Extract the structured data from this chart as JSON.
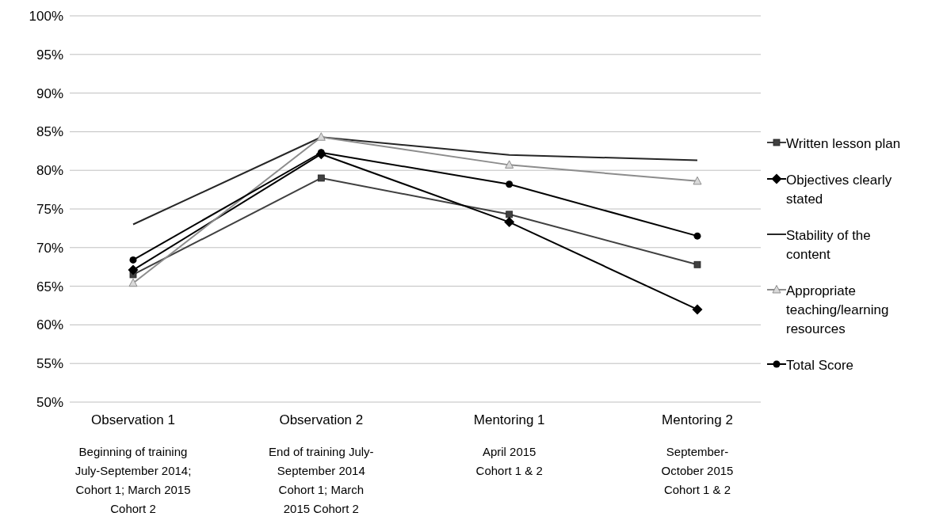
{
  "chart_data": {
    "type": "line",
    "categories": [
      "Observation 1\n\nBeginning of training\nJuly-September 2014;\nCohort 1; March 2015\nCohort 2",
      "Observation 2\n\nEnd of training July-\nSeptember 2014\nCohort 1; March\n2015 Cohort 2",
      "Mentoring 1\n\nApril 2015\nCohort 1 & 2",
      "Mentoring 2\n\nSeptember-\nOctober 2015\nCohort 1 & 2"
    ],
    "series": [
      {
        "name": "Written lesson plan",
        "color": "#404040",
        "marker": "square",
        "values": [
          66.5,
          79.0,
          74.3,
          67.8
        ]
      },
      {
        "name": "Objectives clearly stated",
        "color": "#000000",
        "marker": "diamond",
        "values": [
          67.1,
          82.1,
          73.3,
          62.0
        ]
      },
      {
        "name": "Stability of the content",
        "color": "#262626",
        "marker": "none",
        "values": [
          73.0,
          84.3,
          82.0,
          81.3
        ]
      },
      {
        "name": "Appropriate teaching/learning resources",
        "color": "#8c8c8c",
        "marker": "triangle",
        "values": [
          65.4,
          84.3,
          80.7,
          78.6
        ]
      },
      {
        "name": "Total Score",
        "color": "#000000",
        "marker": "circle",
        "values": [
          68.4,
          82.3,
          78.2,
          71.5
        ]
      }
    ],
    "ylim": [
      50,
      100
    ],
    "yticks": [
      {
        "value": 50,
        "label": "50%"
      },
      {
        "value": 55,
        "label": "55%"
      },
      {
        "value": 60,
        "label": "60%"
      },
      {
        "value": 65,
        "label": "65%"
      },
      {
        "value": 70,
        "label": "70%"
      },
      {
        "value": 75,
        "label": "75%"
      },
      {
        "value": 80,
        "label": "80%"
      },
      {
        "value": 85,
        "label": "85%"
      },
      {
        "value": 90,
        "label": "90%"
      },
      {
        "value": 95,
        "label": "95%"
      },
      {
        "value": 100,
        "label": "100%"
      }
    ],
    "grid": "y",
    "legend": "right",
    "line_style": "solid"
  }
}
